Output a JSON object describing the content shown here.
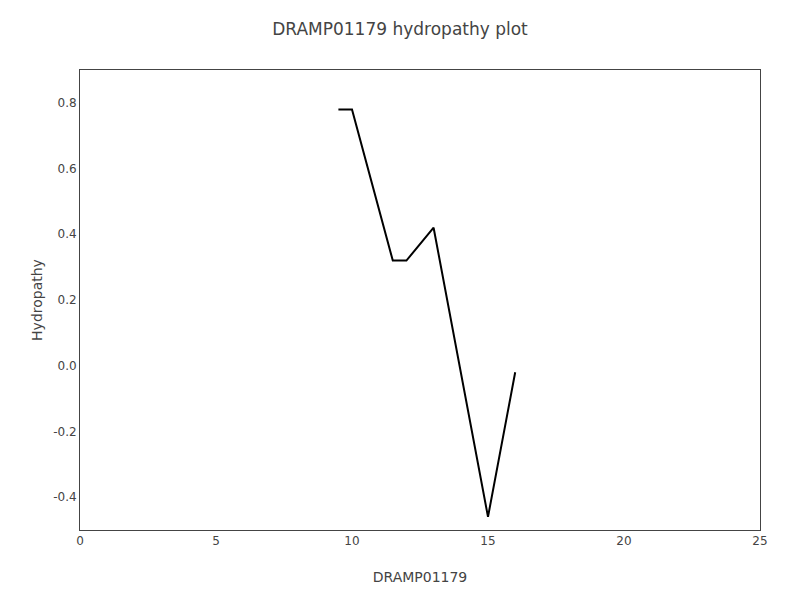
{
  "chart_data": {
    "type": "line",
    "title": "DRAMP01179 hydropathy plot",
    "xlabel": "DRAMP01179",
    "ylabel": "Hydropathy",
    "x": [
      9.5,
      10.0,
      11.5,
      12.0,
      13.0,
      15.0,
      16.0
    ],
    "values": [
      0.78,
      0.78,
      0.32,
      0.32,
      0.42,
      -0.46,
      -0.02
    ],
    "color": "#000000",
    "xlim": [
      0,
      25
    ],
    "ylim": [
      -0.5,
      0.9
    ],
    "xticks": [
      0,
      5,
      10,
      15,
      20,
      25
    ],
    "yticks": [
      -0.4,
      -0.2,
      {
        "value": 0.0,
        "label": "0.0"
      },
      0.2,
      0.4,
      0.6,
      0.8
    ],
    "grid": false
  }
}
